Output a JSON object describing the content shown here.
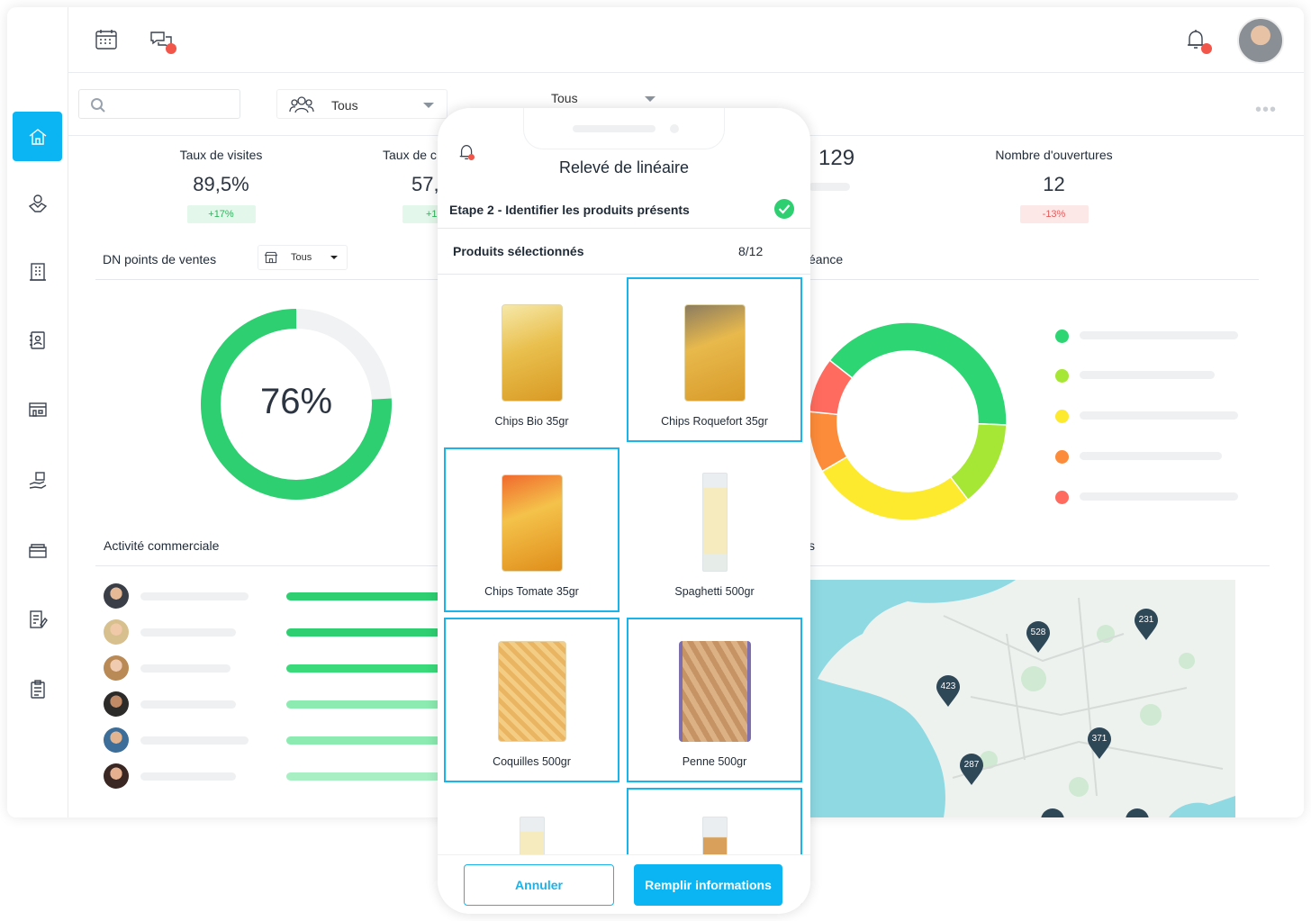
{
  "filters": {
    "group_select": "Tous",
    "second_select": "Tous",
    "dn_select": "Tous"
  },
  "kpis": [
    {
      "title": "Taux de visites",
      "value": "89,5%",
      "badge": "+17%",
      "trend": "up"
    },
    {
      "title": "Taux de c",
      "value": "57,",
      "badge": "+1",
      "trend": "up"
    },
    {
      "title": "",
      "value": "129",
      "badge": "",
      "trend": "neutral"
    },
    {
      "title": "Nombre d'ouvertures",
      "value": "12",
      "badge": "-13%",
      "trend": "down"
    }
  ],
  "dn": {
    "title": "DN points de ventes",
    "percent": 76,
    "percent_label": "76%"
  },
  "echeance": {
    "title_fragment": "éance",
    "segments": [
      {
        "color": "#2ed573",
        "value": 40
      },
      {
        "color": "#a6e635",
        "value": 14
      },
      {
        "color": "#fde92d",
        "value": 27
      },
      {
        "color": "#fd8c3a",
        "value": 10
      },
      {
        "color": "#ff6b5e",
        "value": 9
      }
    ]
  },
  "activite": {
    "title": "Activité commerciale",
    "rows": [
      {
        "bar_color": "#2ecf71"
      },
      {
        "bar_color": "#2ecf71"
      },
      {
        "bar_color": "#3ad97a"
      },
      {
        "bar_color": "#8bebb0"
      },
      {
        "bar_color": "#8bebb0"
      },
      {
        "bar_color": "#a8f0c4"
      }
    ]
  },
  "map": {
    "title_fragment": "s",
    "pins": [
      "528",
      "231",
      "423",
      "371",
      "287"
    ]
  },
  "phone": {
    "title": "Relevé de linéaire",
    "step": "Etape 2 - Identifier les produits présents",
    "selected_label": "Produits sélectionnés",
    "selected_count": "8/12",
    "products": [
      {
        "name": "Chips Bio 35gr",
        "selected": false
      },
      {
        "name": "Chips Roquefort 35gr",
        "selected": true
      },
      {
        "name": "Chips Tomate 35gr",
        "selected": true
      },
      {
        "name": "Spaghetti 500gr",
        "selected": false
      },
      {
        "name": "Coquilles 500gr",
        "selected": true
      },
      {
        "name": "Penne 500gr",
        "selected": true
      },
      {
        "name": "",
        "selected": false
      },
      {
        "name": "",
        "selected": true
      }
    ],
    "cancel_label": "Annuler",
    "fill_label": "Remplir informations"
  },
  "colors": {
    "accent": "#0bb4f2",
    "success": "#2ecf71",
    "danger": "#f2554a"
  }
}
